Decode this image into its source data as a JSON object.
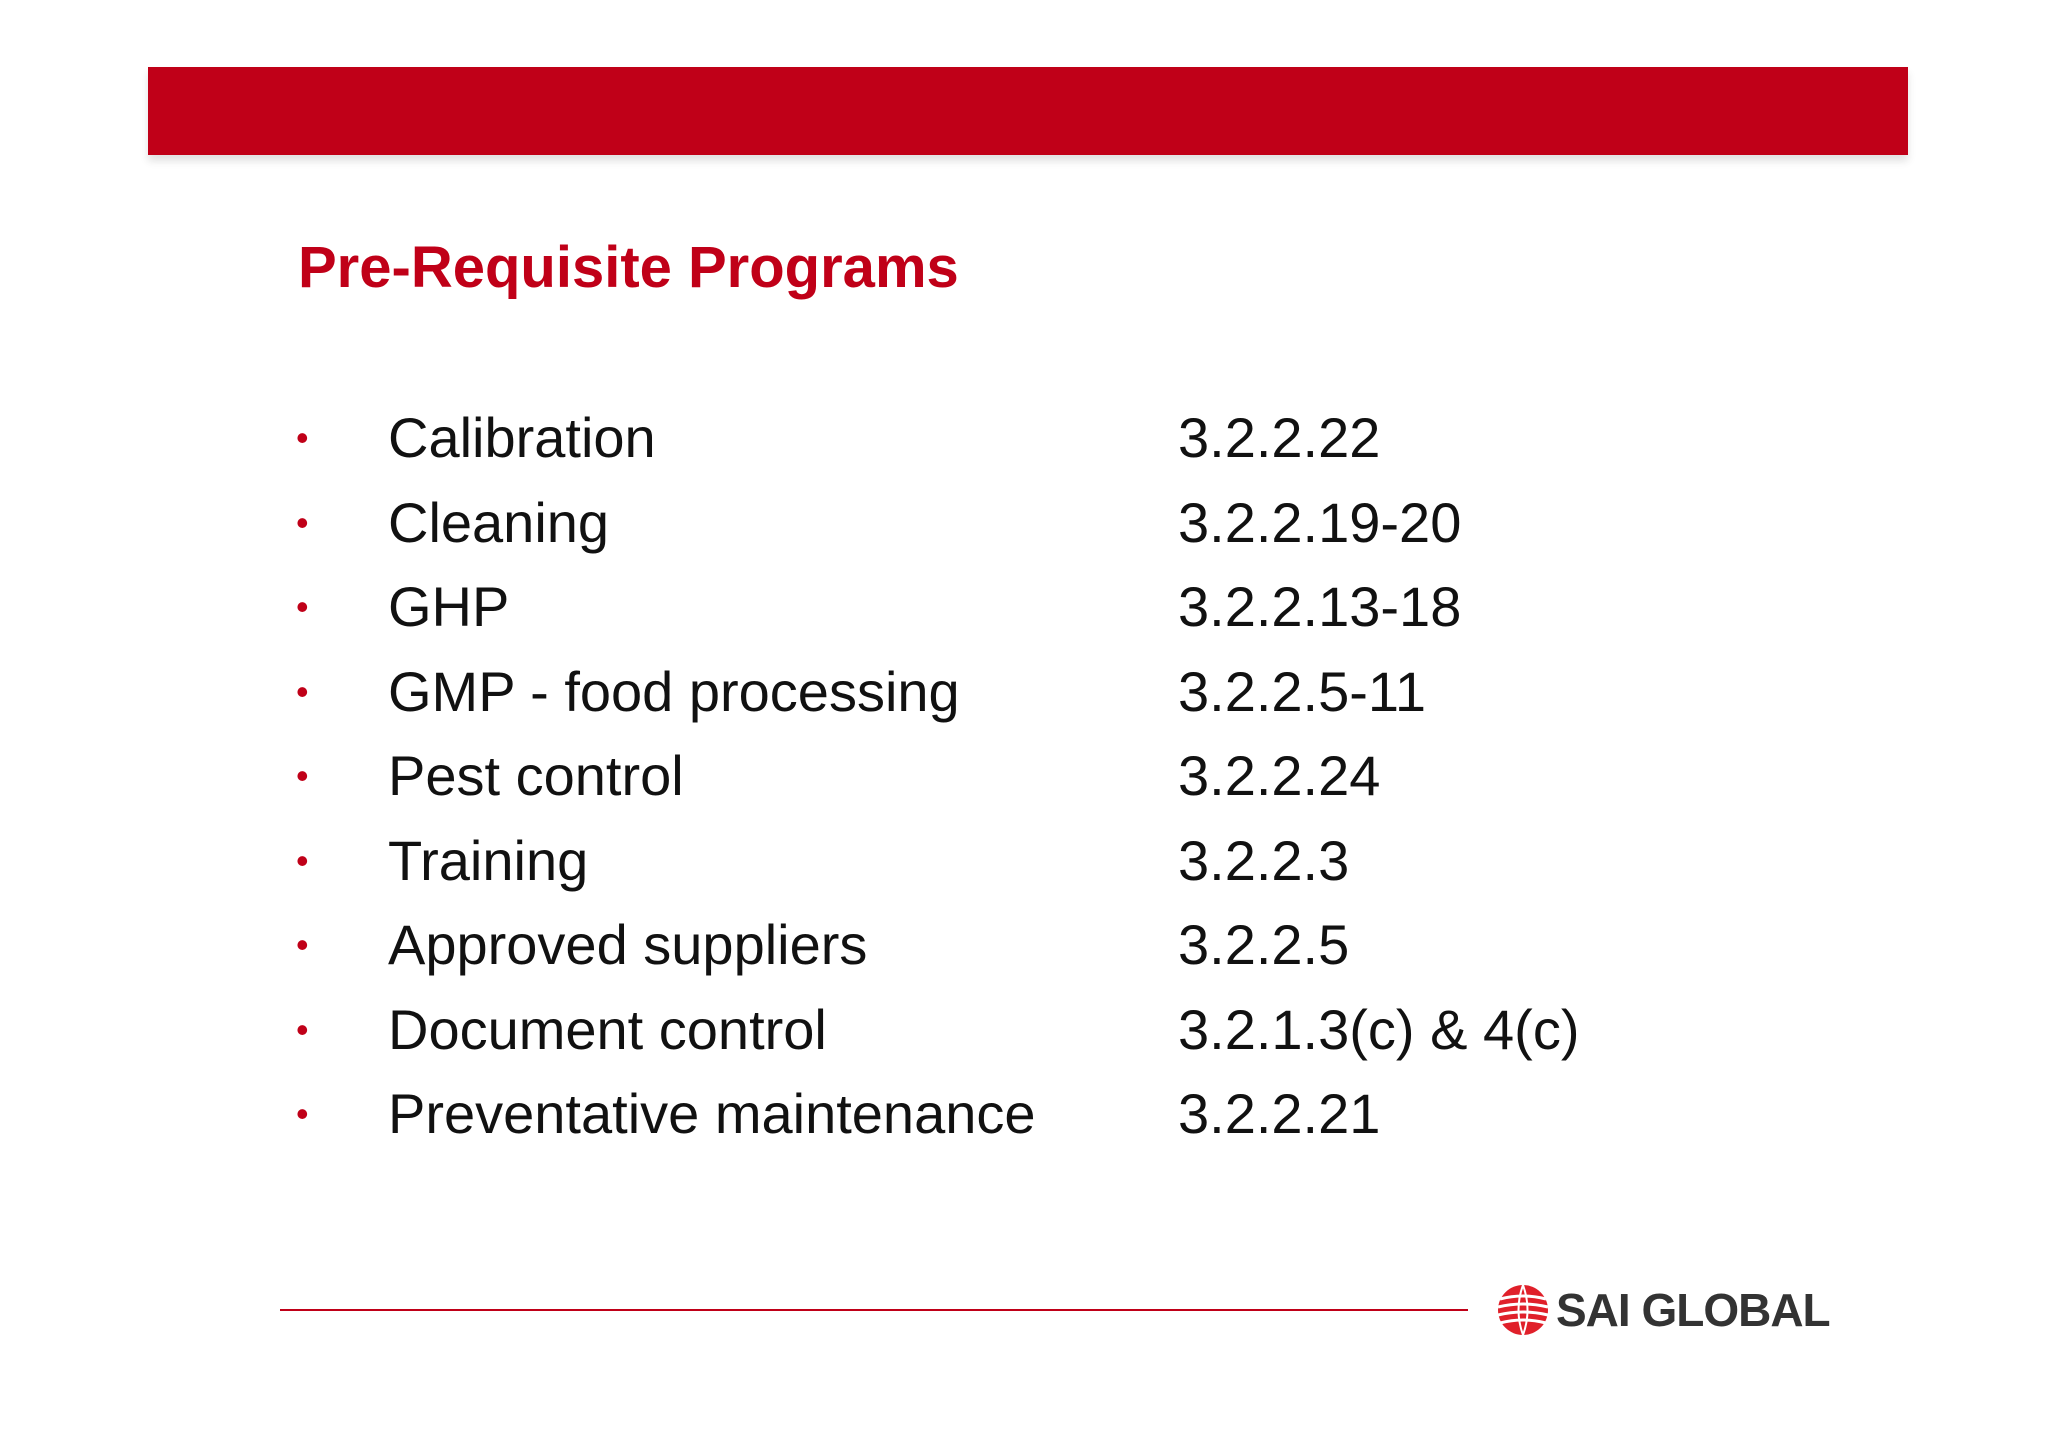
{
  "slide": {
    "title": "Pre-Requisite Programs",
    "bullet_glyph": "•",
    "programs": [
      {
        "name": "Calibration",
        "ref": "3.2.2.22"
      },
      {
        "name": "Cleaning",
        "ref": "3.2.2.19-20"
      },
      {
        "name": "GHP",
        "ref": "3.2.2.13-18"
      },
      {
        "name": "GMP - food processing",
        "ref": "3.2.2.5-11"
      },
      {
        "name": "Pest control",
        "ref": "3.2.2.24"
      },
      {
        "name": "Training",
        "ref": "3.2.2.3"
      },
      {
        "name": "Approved suppliers",
        "ref": "3.2.2.5"
      },
      {
        "name": "Document control",
        "ref": "3.2.1.3(c) & 4(c)"
      },
      {
        "name": "Preventative maintenance",
        "ref": "3.2.2.21"
      }
    ]
  },
  "footer": {
    "logo_text": "SAI GLOBAL",
    "logo_icon": "sai-global-globe-icon"
  },
  "colors": {
    "brand_red": "#c00018",
    "text": "#111111",
    "logo_text": "#333333"
  }
}
